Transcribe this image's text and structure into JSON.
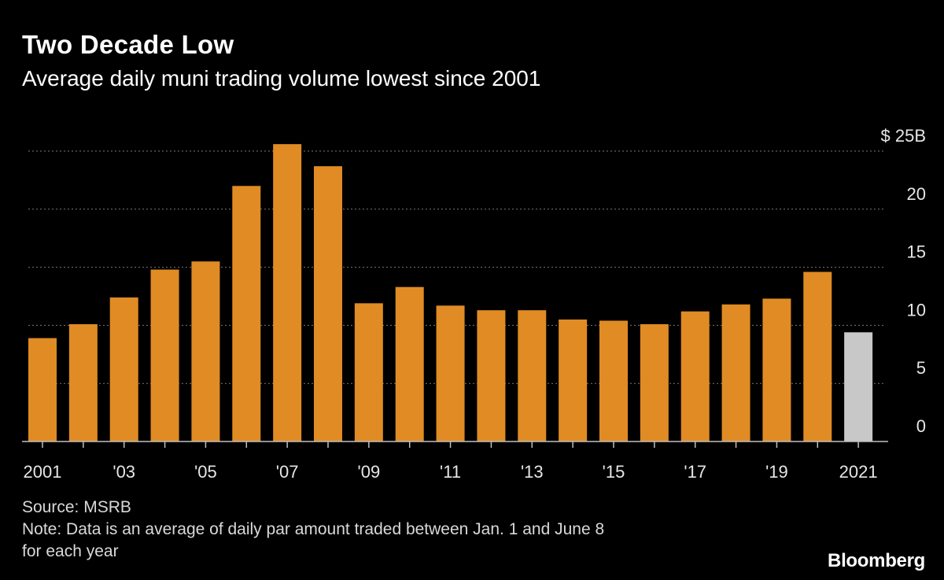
{
  "header": {
    "title": "Two Decade Low",
    "subtitle": "Average daily muni trading volume lowest since 2001"
  },
  "footer": {
    "source": "Source: MSRB",
    "note_line1": "Note: Data is an average of daily par amount traded between Jan. 1 and June 8",
    "note_line2": "for each year"
  },
  "brand": {
    "logo": "Bloomberg"
  },
  "colors": {
    "bar": "#e08b24",
    "highlight": "#c8c8c8",
    "grid": "#7a7a7a",
    "axis": "#bfbfbf"
  },
  "chart_data": {
    "type": "bar",
    "title": "Two Decade Low",
    "subtitle": "Average daily muni trading volume lowest since 2001",
    "xlabel": "",
    "ylabel": "",
    "categories": [
      "2001",
      "2002",
      "2003",
      "2004",
      "2005",
      "2006",
      "2007",
      "2008",
      "2009",
      "2010",
      "2011",
      "2012",
      "2013",
      "2014",
      "2015",
      "2016",
      "2017",
      "2018",
      "2019",
      "2020",
      "2021"
    ],
    "values": [
      8.9,
      10.1,
      12.4,
      14.8,
      15.5,
      22.0,
      25.6,
      23.7,
      11.9,
      13.3,
      11.7,
      11.3,
      11.3,
      10.5,
      10.4,
      10.1,
      11.2,
      11.8,
      12.3,
      14.6,
      9.4
    ],
    "highlight_index": 20,
    "xtick_labels": [
      "2001",
      "",
      "'03",
      "",
      "'05",
      "",
      "'07",
      "",
      "'09",
      "",
      "'11",
      "",
      "'13",
      "",
      "'15",
      "",
      "'17",
      "",
      "'19",
      "",
      "2021"
    ],
    "yticks": [
      0,
      5,
      10,
      15,
      20,
      25
    ],
    "ytick_labels": [
      "0",
      "5",
      "10",
      "15",
      "20",
      "$ 25B"
    ],
    "ylim": [
      0,
      25.8
    ],
    "grid": true,
    "y_axis_side": "right"
  }
}
